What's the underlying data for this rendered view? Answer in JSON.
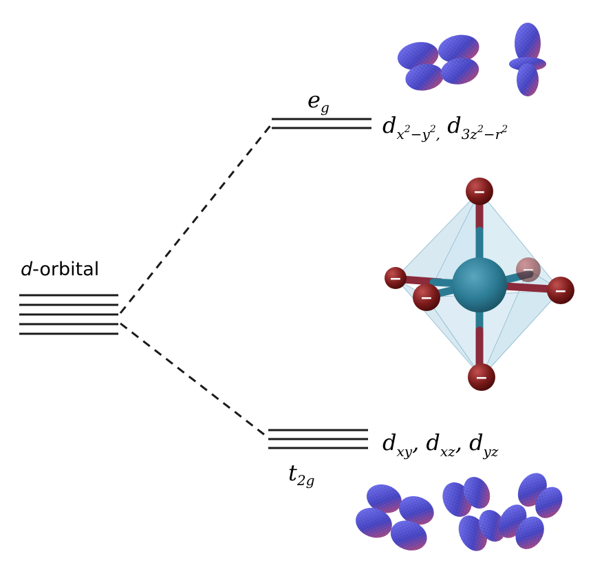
{
  "diagram": {
    "d_orbital_label": {
      "italic": "d",
      "rest": "-orbital"
    },
    "eg_label": {
      "main": "e",
      "sub": "g"
    },
    "t2g_label": {
      "main": "t",
      "sub": "2g"
    },
    "eg_orbitals": {
      "first": {
        "main": "d",
        "sub_base1": "x",
        "sup1": "2",
        "sub_mid": "−y",
        "sup2": "2",
        "sep": ","
      },
      "second": {
        "main": "d",
        "sub_base1": "3z",
        "sup1": "2",
        "sub_mid": "−r",
        "sup2": "2"
      }
    },
    "t2g_orbitals": [
      {
        "main": "d",
        "sub": "xy",
        "sep": ","
      },
      {
        "main": "d",
        "sub": "xz",
        "sep": ","
      },
      {
        "main": "d",
        "sub": "yz",
        "sep": ""
      }
    ],
    "ligand_charge": "−",
    "colors": {
      "line": "#1a1a1a",
      "metal": "#2b7a93",
      "ligand": "#7a1a1a",
      "octahedron": "#a9cfe3",
      "lobe_blue": "#5a5ad8",
      "lobe_red": "#d04a6a"
    }
  }
}
